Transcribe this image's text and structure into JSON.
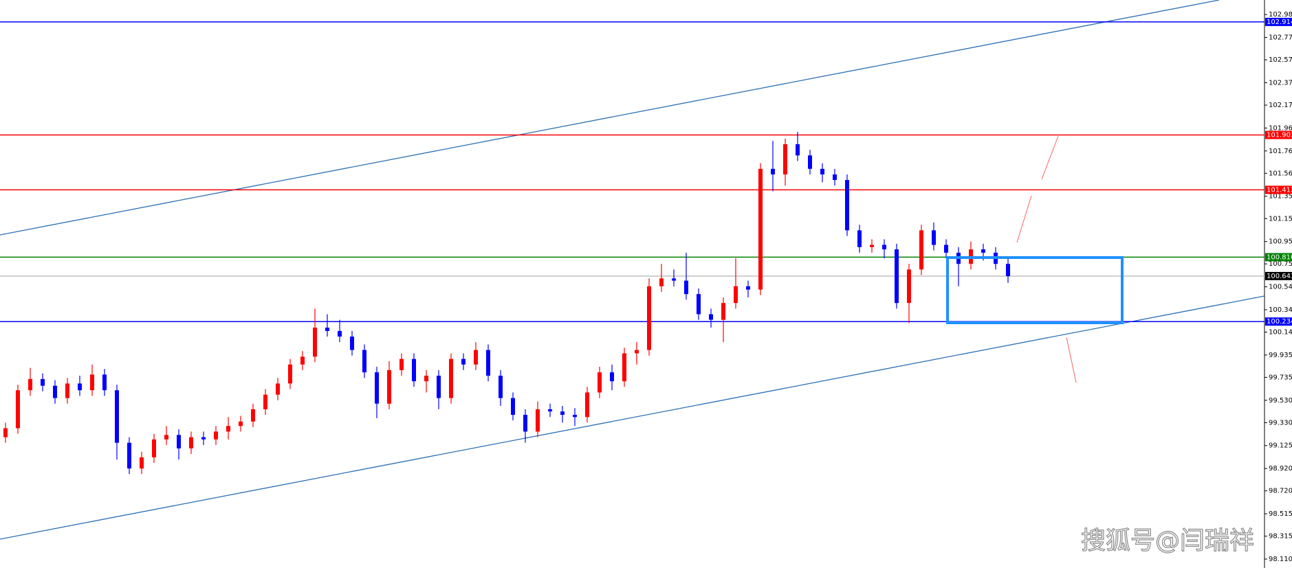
{
  "chart_data": {
    "type": "candlestick",
    "up_color": "#ff0000",
    "down_color": "#0000ff",
    "open": [
      99.2,
      99.28,
      99.62,
      99.72,
      99.66,
      99.55,
      99.68,
      99.62,
      99.76,
      99.62,
      99.15,
      98.92,
      99.02,
      99.18,
      99.22,
      99.1,
      99.2,
      99.18,
      99.25,
      99.3,
      99.34,
      99.45,
      99.58,
      99.68,
      99.85,
      99.92,
      100.18,
      100.15,
      100.1,
      99.98,
      99.78,
      99.5,
      99.8,
      99.9,
      99.7,
      99.75,
      99.55,
      99.9,
      99.85,
      99.98,
      99.75,
      99.55,
      99.4,
      99.25,
      99.45,
      99.43,
      99.4,
      99.38,
      99.6,
      99.78,
      99.7,
      99.95,
      99.98,
      100.55,
      100.62,
      100.6,
      100.48,
      100.3,
      100.25,
      100.4,
      100.55,
      100.52,
      101.6,
      101.55,
      101.82,
      101.72,
      101.6,
      101.55,
      101.5,
      101.05,
      100.9,
      100.92,
      100.88,
      100.4,
      100.7,
      101.05,
      100.92,
      100.85,
      100.75,
      100.88,
      100.85,
      100.75
    ],
    "high": [
      99.33,
      99.67,
      99.82,
      99.77,
      99.71,
      99.73,
      99.75,
      99.85,
      99.81,
      99.67,
      99.2,
      99.07,
      99.23,
      99.3,
      99.27,
      99.25,
      99.25,
      99.3,
      99.38,
      99.39,
      99.5,
      99.63,
      99.73,
      99.9,
      99.97,
      100.35,
      100.3,
      100.25,
      100.15,
      100.03,
      99.83,
      99.88,
      99.95,
      99.95,
      99.8,
      99.8,
      99.95,
      99.95,
      100.05,
      100.03,
      99.8,
      99.6,
      99.45,
      99.52,
      99.5,
      99.48,
      99.46,
      99.65,
      99.83,
      99.85,
      100.0,
      100.05,
      100.62,
      100.75,
      100.7,
      100.85,
      100.53,
      100.35,
      100.45,
      100.8,
      100.6,
      101.65,
      101.85,
      101.87,
      101.93,
      101.77,
      101.65,
      101.6,
      101.55,
      101.1,
      100.97,
      100.97,
      100.93,
      100.75,
      101.1,
      101.12,
      100.97,
      100.9,
      100.95,
      100.93,
      100.9,
      100.8
    ],
    "low": [
      99.15,
      99.23,
      99.57,
      99.61,
      99.5,
      99.5,
      99.57,
      99.57,
      99.57,
      99.0,
      98.87,
      98.87,
      98.97,
      99.13,
      99.0,
      99.05,
      99.13,
      99.13,
      99.18,
      99.25,
      99.29,
      99.4,
      99.53,
      99.63,
      99.8,
      99.87,
      100.1,
      100.05,
      99.93,
      99.73,
      99.37,
      99.45,
      99.75,
      99.65,
      99.6,
      99.45,
      99.5,
      99.8,
      99.8,
      99.7,
      99.48,
      99.35,
      99.15,
      99.2,
      99.38,
      99.33,
      99.3,
      99.33,
      99.55,
      99.62,
      99.65,
      99.85,
      99.93,
      100.5,
      100.55,
      100.43,
      100.25,
      100.18,
      100.05,
      100.35,
      100.45,
      100.47,
      101.4,
      101.45,
      101.67,
      101.55,
      101.48,
      101.45,
      101.0,
      100.85,
      100.85,
      100.8,
      100.35,
      100.22,
      100.65,
      100.87,
      100.8,
      100.55,
      100.7,
      100.78,
      100.7,
      100.58
    ],
    "close": [
      99.28,
      99.62,
      99.72,
      99.66,
      99.55,
      99.68,
      99.62,
      99.76,
      99.62,
      99.15,
      98.92,
      99.02,
      99.18,
      99.22,
      99.1,
      99.2,
      99.18,
      99.25,
      99.3,
      99.34,
      99.45,
      99.58,
      99.68,
      99.85,
      99.92,
      100.18,
      100.15,
      100.1,
      99.98,
      99.78,
      99.5,
      99.8,
      99.9,
      99.7,
      99.75,
      99.55,
      99.9,
      99.85,
      99.98,
      99.75,
      99.55,
      99.4,
      99.25,
      99.45,
      99.43,
      99.4,
      99.38,
      99.6,
      99.78,
      99.7,
      99.95,
      99.98,
      100.55,
      100.62,
      100.6,
      100.48,
      100.3,
      100.25,
      100.4,
      100.55,
      100.52,
      101.6,
      101.55,
      101.82,
      101.72,
      101.6,
      101.55,
      101.5,
      101.05,
      100.9,
      100.92,
      100.88,
      100.4,
      100.7,
      101.05,
      100.92,
      100.85,
      100.75,
      100.88,
      100.85,
      100.75,
      100.64
    ],
    "ylim": [
      98.03,
      103.11
    ],
    "yticks": [
      {
        "value": 102.98,
        "label": "102.980"
      },
      102.775,
      102.575,
      {
        "value": 102.37,
        "label": "102.370"
      },
      {
        "value": 102.17,
        "label": "102.170"
      },
      101.965,
      {
        "value": 101.76,
        "label": "101.760"
      },
      {
        "value": 101.56,
        "label": "101.560"
      },
      101.355,
      101.155,
      {
        "value": 100.95,
        "label": "100.950"
      },
      {
        "value": 100.75,
        "label": "100.750"
      },
      100.545,
      {
        "value": 100.34,
        "label": "100.340"
      },
      {
        "value": 100.14,
        "label": "100.140"
      },
      99.935,
      99.735,
      {
        "value": 99.53,
        "label": "99.530"
      },
      {
        "value": 99.33,
        "label": "99.330"
      },
      99.125,
      {
        "value": 98.92,
        "label": "98.920"
      },
      {
        "value": 98.72,
        "label": "98.720"
      },
      98.515,
      98.315,
      {
        "value": 98.11,
        "label": "98.110"
      }
    ],
    "levels": [
      {
        "value": 102.914,
        "color": "#0000ff"
      },
      {
        "value": 101.903,
        "color": "#ff0000"
      },
      {
        "value": 101.412,
        "color": "#ff0000"
      },
      {
        "value": 100.81,
        "label": "100.810",
        "color": "#008000"
      },
      {
        "value": 100.641,
        "color": "#c0c0c0",
        "label_color": "#000000"
      },
      {
        "value": 100.234,
        "color": "#0000ff"
      }
    ],
    "watermark": "搜狐号@闫瑞祥"
  }
}
